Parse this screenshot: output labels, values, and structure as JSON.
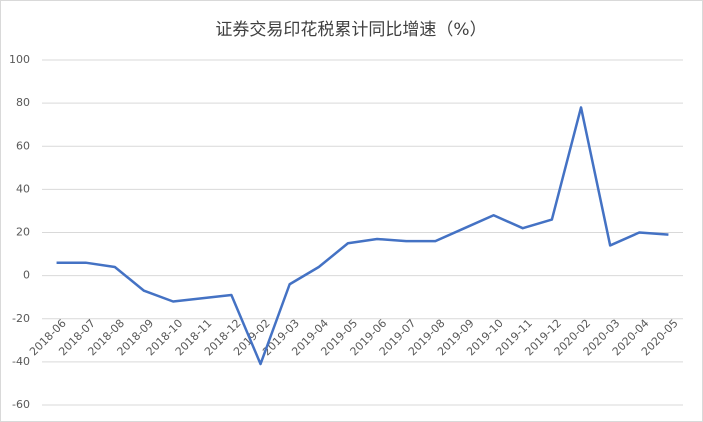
{
  "chart_data": {
    "type": "line",
    "title": "证券交易印花税累计同比增速（%）",
    "categories": [
      "2018-06",
      "2018-07",
      "2018-08",
      "2018-09",
      "2018-10",
      "2018-11",
      "2018-12",
      "2019-02",
      "2019-03",
      "2019-04",
      "2019-05",
      "2019-06",
      "2019-07",
      "2019-08",
      "2019-09",
      "2019-10",
      "2019-11",
      "2019-12",
      "2020-02",
      "2020-03",
      "2020-04",
      "2020-05"
    ],
    "series": [
      {
        "name": "证券交易印花税累计同比增速",
        "color": "#4472c4",
        "values": [
          6,
          6,
          4,
          -7,
          -12,
          -10.5,
          -9,
          -41,
          -4,
          4,
          15,
          17,
          16,
          16,
          22,
          28,
          22,
          26,
          78,
          14,
          20,
          19
        ]
      }
    ],
    "ylim": [
      -60,
      100
    ],
    "yticks": [
      -60,
      -40,
      -20,
      0,
      20,
      40,
      60,
      80,
      100
    ],
    "grid": true
  }
}
